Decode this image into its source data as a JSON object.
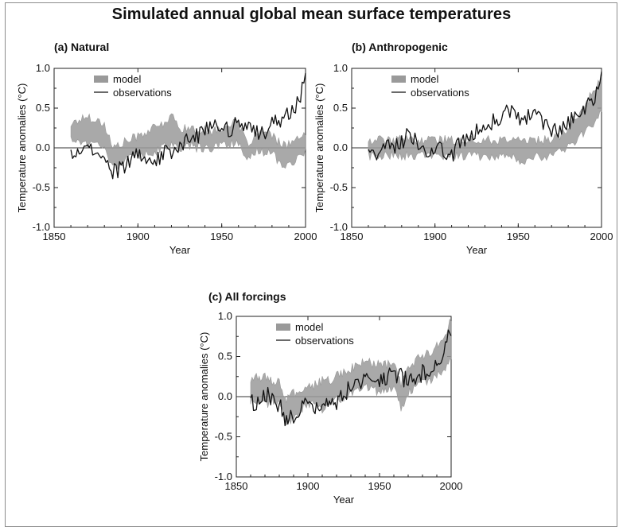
{
  "figure": {
    "title": "Simulated annual global mean surface temperatures"
  },
  "style": {
    "model_color": "#9a9a9a",
    "observation_color": "#111111",
    "axis_color": "#222222",
    "zero_line_color": "#333333"
  },
  "chart_data": [
    {
      "type": "line",
      "panel_title": "(a) Natural",
      "xlabel": "Year",
      "ylabel": "Temperature anomalies (°C)",
      "xlim": [
        1850,
        2000
      ],
      "ylim": [
        -1.0,
        1.0
      ],
      "xticks": [
        "1850",
        "1900",
        "1950",
        "2000"
      ],
      "yticks": [
        "1.0",
        "0.5",
        "0.0",
        "-0.5",
        "-1.0"
      ],
      "legend": {
        "position": "top-left",
        "entries": [
          "model",
          "observations"
        ]
      },
      "grid": false,
      "series": [
        {
          "name": "model",
          "kind": "band",
          "x": [
            1860,
            1865,
            1870,
            1875,
            1880,
            1885,
            1890,
            1895,
            1900,
            1905,
            1910,
            1915,
            1920,
            1925,
            1930,
            1935,
            1940,
            1945,
            1950,
            1955,
            1960,
            1965,
            1970,
            1975,
            1980,
            1985,
            1990,
            1995,
            2000
          ],
          "lower": [
            0.1,
            0.1,
            0.05,
            0.05,
            0.05,
            -0.25,
            -0.2,
            -0.1,
            -0.1,
            -0.05,
            -0.05,
            0.0,
            0.05,
            0.0,
            0.05,
            0.0,
            0.0,
            0.0,
            0.05,
            0.05,
            0.05,
            -0.2,
            -0.05,
            -0.05,
            -0.05,
            -0.2,
            -0.2,
            -0.15,
            -0.05
          ],
          "upper": [
            0.3,
            0.35,
            0.4,
            0.35,
            0.3,
            0.0,
            0.05,
            0.1,
            0.15,
            0.2,
            0.25,
            0.3,
            0.4,
            0.25,
            0.25,
            0.2,
            0.25,
            0.2,
            0.25,
            0.3,
            0.3,
            0.05,
            0.15,
            0.2,
            0.15,
            0.05,
            0.05,
            0.1,
            0.15
          ]
        },
        {
          "name": "observations",
          "kind": "line",
          "x": [
            1860,
            1865,
            1870,
            1875,
            1880,
            1885,
            1890,
            1895,
            1900,
            1905,
            1910,
            1915,
            1920,
            1925,
            1930,
            1935,
            1940,
            1945,
            1950,
            1955,
            1960,
            1965,
            1970,
            1975,
            1980,
            1985,
            1990,
            1995,
            2000
          ],
          "values": [
            -0.05,
            -0.1,
            0.05,
            -0.05,
            -0.1,
            -0.3,
            -0.25,
            -0.15,
            -0.05,
            -0.15,
            -0.2,
            -0.05,
            -0.1,
            0.05,
            0.1,
            0.15,
            0.25,
            0.3,
            0.2,
            0.25,
            0.3,
            0.25,
            0.2,
            0.2,
            0.3,
            0.35,
            0.45,
            0.55,
            0.85
          ]
        }
      ]
    },
    {
      "type": "line",
      "panel_title": "(b) Anthropogenic",
      "xlabel": "Year",
      "ylabel": "Temperature anomalies (°C)",
      "xlim": [
        1850,
        2000
      ],
      "ylim": [
        -1.0,
        1.0
      ],
      "xticks": [
        "1850",
        "1900",
        "1950",
        "2000"
      ],
      "yticks": [
        "1.0",
        "0.5",
        "0.0",
        "-0.5",
        "-1.0"
      ],
      "legend": {
        "position": "top-left",
        "entries": [
          "model",
          "observations"
        ]
      },
      "grid": false,
      "series": [
        {
          "name": "model",
          "kind": "band",
          "x": [
            1860,
            1865,
            1870,
            1875,
            1880,
            1885,
            1890,
            1895,
            1900,
            1905,
            1910,
            1915,
            1920,
            1925,
            1930,
            1935,
            1940,
            1945,
            1950,
            1955,
            1960,
            1965,
            1970,
            1975,
            1980,
            1985,
            1990,
            1995,
            2000
          ],
          "lower": [
            -0.1,
            -0.1,
            -0.1,
            -0.1,
            -0.1,
            -0.1,
            -0.1,
            -0.1,
            -0.1,
            -0.1,
            -0.1,
            -0.1,
            -0.1,
            -0.1,
            -0.1,
            -0.1,
            -0.1,
            -0.1,
            -0.15,
            -0.15,
            -0.1,
            -0.15,
            -0.1,
            -0.05,
            0.0,
            0.1,
            0.2,
            0.3,
            0.45
          ],
          "upper": [
            0.1,
            0.1,
            0.1,
            0.1,
            0.1,
            0.1,
            0.1,
            0.1,
            0.1,
            0.1,
            0.1,
            0.1,
            0.1,
            0.1,
            0.1,
            0.1,
            0.1,
            0.1,
            0.1,
            0.1,
            0.1,
            0.1,
            0.1,
            0.15,
            0.25,
            0.4,
            0.55,
            0.7,
            0.85
          ]
        },
        {
          "name": "observations",
          "kind": "line",
          "x": [
            1860,
            1865,
            1870,
            1875,
            1880,
            1885,
            1890,
            1895,
            1900,
            1905,
            1910,
            1915,
            1920,
            1925,
            1930,
            1935,
            1940,
            1945,
            1950,
            1955,
            1960,
            1965,
            1970,
            1975,
            1980,
            1985,
            1990,
            1995,
            2000
          ],
          "values": [
            -0.05,
            -0.1,
            0.05,
            0.0,
            0.05,
            0.2,
            0.0,
            -0.05,
            0.0,
            -0.05,
            -0.1,
            0.05,
            0.15,
            0.2,
            0.25,
            0.35,
            0.4,
            0.45,
            0.35,
            0.4,
            0.45,
            0.3,
            0.2,
            0.2,
            0.3,
            0.4,
            0.5,
            0.6,
            0.85
          ]
        }
      ]
    },
    {
      "type": "line",
      "panel_title": "(c) All forcings",
      "xlabel": "Year",
      "ylabel": "Temperature anomalies (°C)",
      "xlim": [
        1850,
        2000
      ],
      "ylim": [
        -1.0,
        1.0
      ],
      "xticks": [
        "1850",
        "1900",
        "1950",
        "2000"
      ],
      "yticks": [
        "1.0",
        "0.5",
        "0.0",
        "-0.5",
        "-1.0"
      ],
      "legend": {
        "position": "top-left",
        "entries": [
          "model",
          "observations"
        ]
      },
      "grid": false,
      "series": [
        {
          "name": "model",
          "kind": "band",
          "x": [
            1860,
            1865,
            1870,
            1875,
            1880,
            1885,
            1890,
            1895,
            1900,
            1905,
            1910,
            1915,
            1920,
            1925,
            1930,
            1935,
            1940,
            1945,
            1950,
            1955,
            1960,
            1965,
            1970,
            1975,
            1980,
            1985,
            1990,
            1995,
            2000
          ],
          "lower": [
            -0.05,
            -0.05,
            -0.1,
            -0.05,
            -0.1,
            -0.35,
            -0.25,
            -0.15,
            -0.1,
            -0.1,
            -0.15,
            -0.1,
            -0.05,
            0.0,
            0.05,
            0.1,
            0.15,
            0.1,
            0.05,
            0.1,
            0.1,
            -0.15,
            0.05,
            0.1,
            0.2,
            0.2,
            0.25,
            0.35,
            0.5
          ],
          "upper": [
            0.2,
            0.25,
            0.25,
            0.2,
            0.2,
            -0.05,
            0.05,
            0.05,
            0.1,
            0.15,
            0.2,
            0.2,
            0.25,
            0.3,
            0.35,
            0.4,
            0.45,
            0.4,
            0.4,
            0.4,
            0.4,
            0.15,
            0.35,
            0.45,
            0.5,
            0.55,
            0.65,
            0.75,
            0.95
          ]
        },
        {
          "name": "observations",
          "kind": "line",
          "x": [
            1860,
            1865,
            1870,
            1875,
            1880,
            1885,
            1890,
            1895,
            1900,
            1905,
            1910,
            1915,
            1920,
            1925,
            1930,
            1935,
            1940,
            1945,
            1950,
            1955,
            1960,
            1965,
            1970,
            1975,
            1980,
            1985,
            1990,
            1995,
            2000
          ],
          "values": [
            -0.05,
            -0.1,
            0.05,
            -0.05,
            -0.1,
            -0.3,
            -0.25,
            -0.15,
            -0.05,
            -0.15,
            -0.2,
            -0.05,
            -0.1,
            0.05,
            0.1,
            0.15,
            0.25,
            0.3,
            0.2,
            0.25,
            0.3,
            0.25,
            0.2,
            0.2,
            0.3,
            0.35,
            0.45,
            0.55,
            0.85
          ]
        }
      ]
    }
  ]
}
